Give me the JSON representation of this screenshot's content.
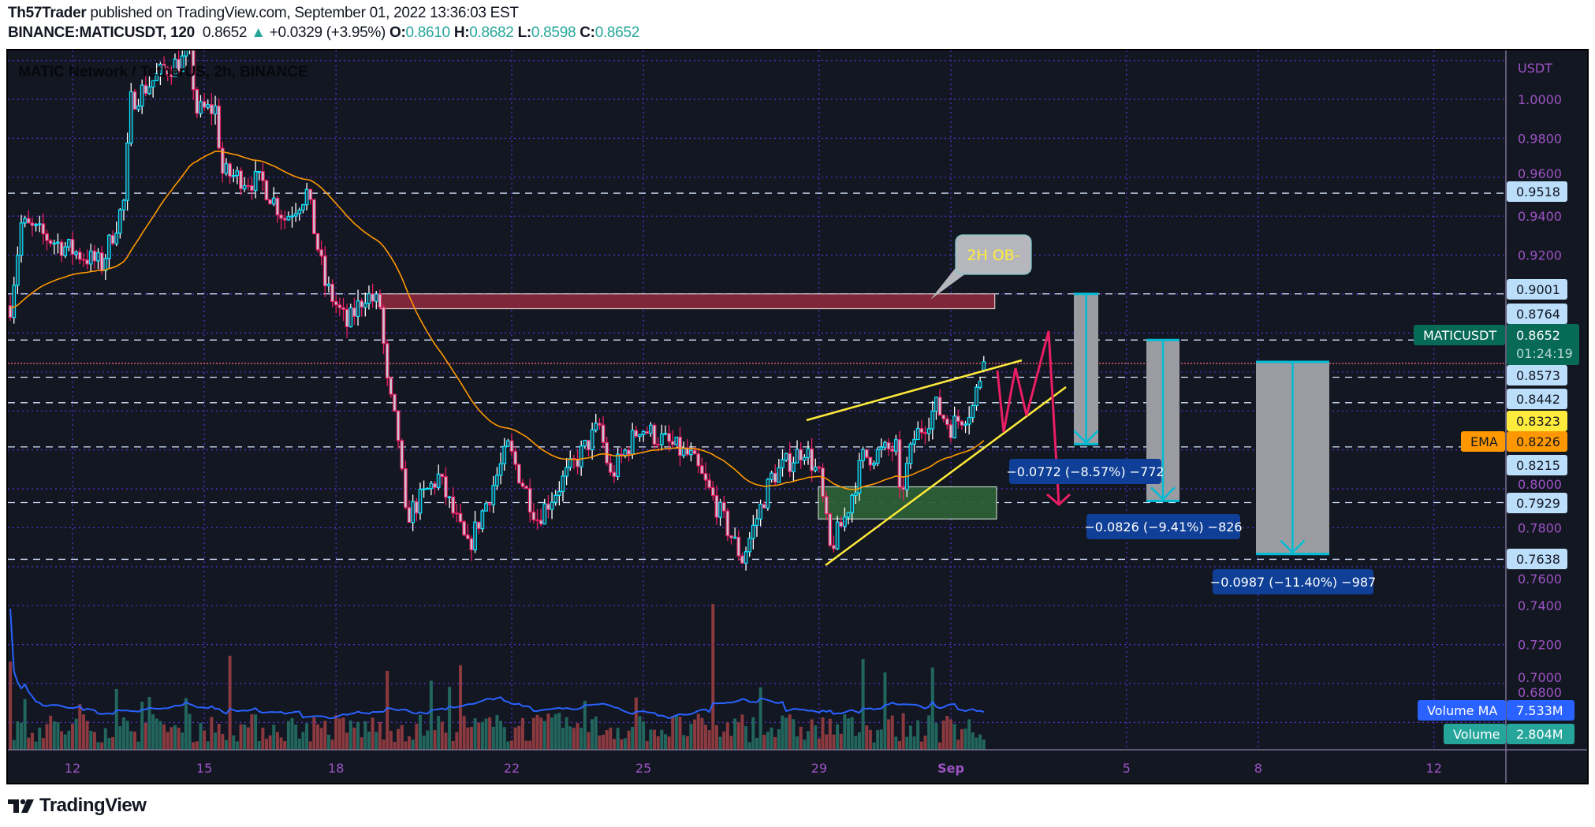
{
  "header": {
    "author": "Th57Trader",
    "published": "published on TradingView.com, September 01, 2022 13:36:03 EST",
    "symbol": "BINANCE:MATICUSDT, 120",
    "last": "0.8652",
    "change": "+0.0329 (+3.95%)",
    "o_label": "O:",
    "o": "0.8610",
    "h_label": "H:",
    "h": "0.8682",
    "l_label": "L:",
    "l": "0.8598",
    "c_label": "C:",
    "c": "0.8652",
    "change_icon": "triangle-up-icon"
  },
  "footer": {
    "brand": "TradingView"
  },
  "colors": {
    "background": "#131722",
    "grid": "#5b2fd0",
    "axis_text": "#9c53c4",
    "up": "#00e5ff",
    "down": "#e91e63",
    "ema": "#ff9800",
    "volume_up": "#22665e",
    "volume_down": "#8b3a3f",
    "volume_ma": "#2962ff",
    "level_label": "#bbdefb",
    "trendline": "#ffeb3b",
    "projection": "#e91e63",
    "measure": "#00bcd4"
  },
  "chart_data": {
    "type": "candlestick",
    "title": "MATIC Network / TetherUS, 2h, BINANCE",
    "currency": "USDT",
    "y_ticks": [
      "1.0000",
      "0.9800",
      "0.9600",
      "0.9400",
      "0.9200",
      "0.8000",
      "0.7800",
      "0.7600",
      "0.7400",
      "0.7200",
      "0.7000",
      "0.6800"
    ],
    "x_ticks": [
      {
        "label": "12",
        "date": "2022-08-12"
      },
      {
        "label": "15",
        "date": "2022-08-15"
      },
      {
        "label": "18",
        "date": "2022-08-18"
      },
      {
        "label": "22",
        "date": "2022-08-22"
      },
      {
        "label": "25",
        "date": "2022-08-25"
      },
      {
        "label": "29",
        "date": "2022-08-29"
      },
      {
        "label": "Sep",
        "date": "2022-09-01"
      },
      {
        "label": "5",
        "date": "2022-09-05"
      },
      {
        "label": "8",
        "date": "2022-09-08"
      },
      {
        "label": "12",
        "date": "2022-09-12"
      }
    ],
    "grid": true,
    "price_path": [
      [
        "2022-08-10 14:00",
        0.894
      ],
      [
        "2022-08-10 20:00",
        0.936
      ],
      [
        "2022-08-11 18:00",
        0.925
      ],
      [
        "2022-08-12 16:00",
        0.915
      ],
      [
        "2022-08-13 04:00",
        0.947
      ],
      [
        "2022-08-13 08:00",
        0.999
      ],
      [
        "2022-08-14 02:00",
        1.015
      ],
      [
        "2022-08-14 16:00",
        1.022
      ],
      [
        "2022-08-14 20:00",
        0.994
      ],
      [
        "2022-08-15 06:00",
        0.995
      ],
      [
        "2022-08-15 10:00",
        0.962
      ],
      [
        "2022-08-16 08:00",
        0.957
      ],
      [
        "2022-08-16 20:00",
        0.939
      ],
      [
        "2022-08-17 08:00",
        0.952
      ],
      [
        "2022-08-17 18:00",
        0.905
      ],
      [
        "2022-08-18 06:00",
        0.884
      ],
      [
        "2022-08-18 16:00",
        0.9
      ],
      [
        "2022-08-19 00:00",
        0.894
      ],
      [
        "2022-08-19 04:00",
        0.853
      ],
      [
        "2022-08-19 10:00",
        0.826
      ],
      [
        "2022-08-19 14:00",
        0.785
      ],
      [
        "2022-08-20 08:00",
        0.806
      ],
      [
        "2022-08-21 00:00",
        0.769
      ],
      [
        "2022-08-21 22:00",
        0.821
      ],
      [
        "2022-08-22 14:00",
        0.785
      ],
      [
        "2022-08-24 00:00",
        0.832
      ],
      [
        "2022-08-24 06:00",
        0.806
      ],
      [
        "2022-08-24 22:00",
        0.832
      ],
      [
        "2022-08-26 02:00",
        0.816
      ],
      [
        "2022-08-26 14:00",
        0.795
      ],
      [
        "2022-08-27 06:00",
        0.764
      ],
      [
        "2022-08-27 22:00",
        0.806
      ],
      [
        "2022-08-28 16:00",
        0.821
      ],
      [
        "2022-08-29 00:00",
        0.806
      ],
      [
        "2022-08-29 06:00",
        0.769
      ],
      [
        "2022-08-29 14:00",
        0.785
      ],
      [
        "2022-08-30 00:00",
        0.816
      ],
      [
        "2022-08-30 18:00",
        0.821
      ],
      [
        "2022-08-30 20:00",
        0.795
      ],
      [
        "2022-08-31 04:00",
        0.826
      ],
      [
        "2022-08-31 16:00",
        0.842
      ],
      [
        "2022-09-01 00:00",
        0.832
      ],
      [
        "2022-09-01 12:00",
        0.842
      ],
      [
        "2022-09-01 18:00",
        0.8652
      ]
    ],
    "last_candle": {
      "open": 0.861,
      "high": 0.8682,
      "low": 0.8598,
      "close": 0.8652
    },
    "levels": [
      {
        "price": 0.9518,
        "label": "0.9518"
      },
      {
        "price": 0.9001,
        "label": "0.9001"
      },
      {
        "price": 0.8764,
        "label": "0.8764"
      },
      {
        "price": 0.8573,
        "label": "0.8573"
      },
      {
        "price": 0.8442,
        "label": "0.8442"
      },
      {
        "price": 0.8215,
        "label": "0.8215"
      },
      {
        "price": 0.7929,
        "label": "0.7929"
      },
      {
        "price": 0.7638,
        "label": "0.7638"
      }
    ],
    "last_price": {
      "symbol": "MATICUSDT",
      "price": 0.8652,
      "label": "0.8652",
      "countdown": "01:24:19"
    },
    "yellow_label": {
      "price": 0.8323,
      "label": "0.8323"
    },
    "ema": {
      "name": "EMA",
      "value": 0.8226,
      "label": "0.8226"
    },
    "volume": {
      "name": "Volume",
      "label": "2.804M"
    },
    "volume_ma": {
      "name": "Volume MA",
      "label": "7.533M"
    },
    "annotations": {
      "ob_callout": "2H OB-",
      "ob_zone": {
        "from": "2022-08-19 00:00",
        "to": "2022-09-02 00:00",
        "top": 0.9001,
        "bottom": 0.8925
      },
      "demand_zone": {
        "from": "2022-08-29 00:00",
        "to": "2022-09-02 00:00",
        "top": 0.801,
        "bottom": 0.7845
      },
      "measures": [
        {
          "from_price": 0.9001,
          "to_price": 0.8229,
          "label": "−0.0772 (−8.57%) −772"
        },
        {
          "from_price": 0.8764,
          "to_price": 0.7938,
          "label": "−0.0826 (−9.41%) −826"
        },
        {
          "from_price": 0.8652,
          "to_price": 0.7665,
          "label": "−0.0987 (−11.40%) −987"
        }
      ]
    }
  }
}
